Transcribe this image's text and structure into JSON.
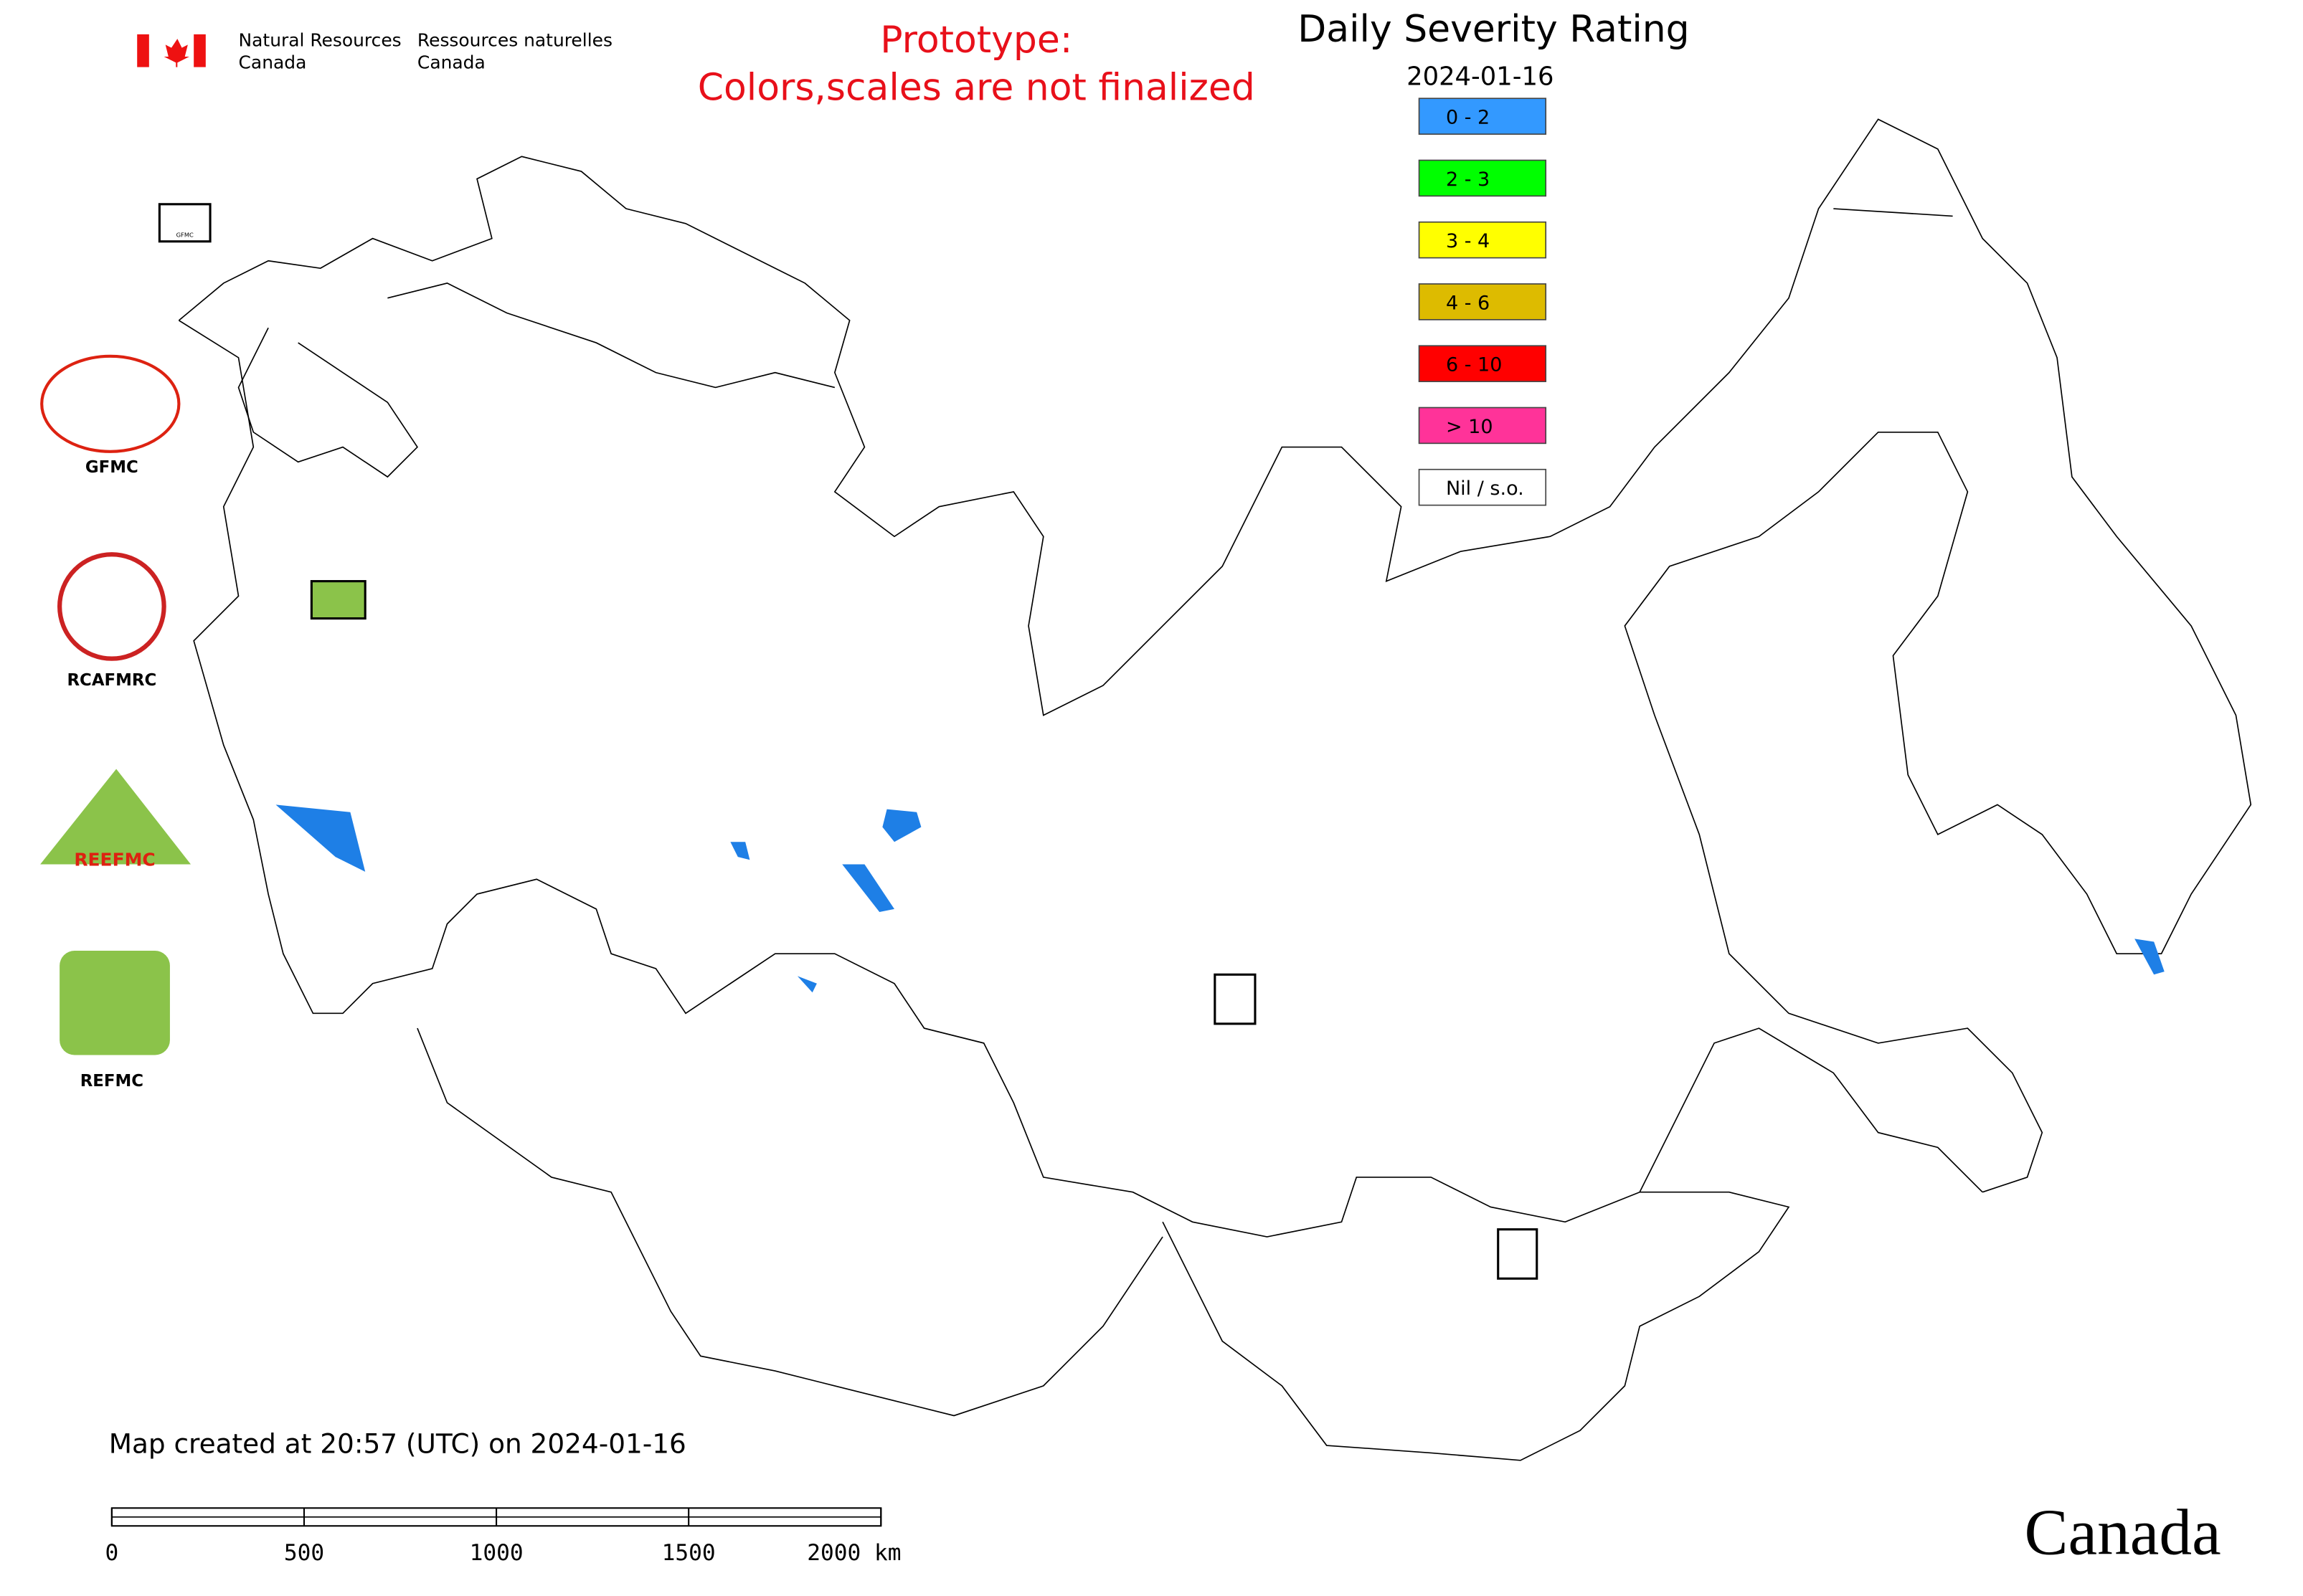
{
  "header": {
    "dept_en_1": "Natural Resources",
    "dept_en_2": "Canada",
    "dept_fr_1": "Ressources naturelles",
    "dept_fr_2": "Canada"
  },
  "notice": [
    "Prototype:",
    "Colors,scales are not finalized"
  ],
  "legend": {
    "title": "Daily Severity Rating",
    "date": "2024-01-16",
    "items": [
      {
        "label": "0 - 2",
        "color": "#3399ff"
      },
      {
        "label": "2 - 3",
        "color": "#00ff00"
      },
      {
        "label": "3 - 4",
        "color": "#ffff00"
      },
      {
        "label": "4 - 6",
        "color": "#ddbb00"
      },
      {
        "label": "6 - 10",
        "color": "#ff0000"
      },
      {
        "label": "> 10",
        "color": "#ff3399"
      },
      {
        "label": "Nil / s.o.",
        "color": "#ffffff"
      }
    ]
  },
  "logos": [
    "GFMC",
    "RCAFMRC",
    "REEFMC",
    "REFMC"
  ],
  "footer": {
    "created": "Map created at 20:57 (UTC) on 2024-01-16",
    "scale_labels": [
      "0",
      "500",
      "1000",
      "1500",
      "2000 km"
    ],
    "wordmark": "Canada"
  }
}
